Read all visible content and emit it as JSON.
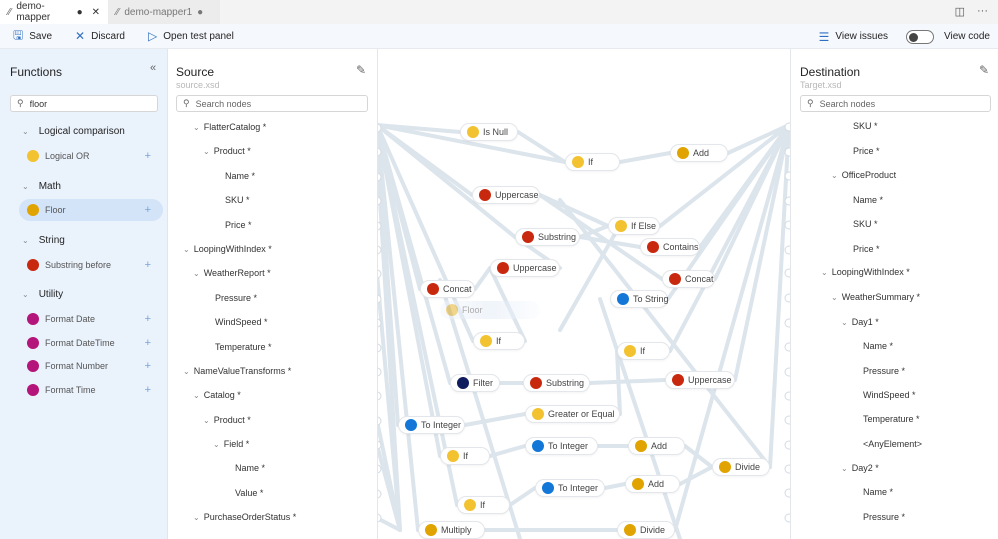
{
  "tabs": [
    {
      "label": "demo-mapper",
      "dirty": true,
      "active": true
    },
    {
      "label": "demo-mapper1",
      "dirty": true,
      "active": false
    }
  ],
  "toolbar": {
    "save": "Save",
    "discard": "Discard",
    "open_test_panel": "Open test panel",
    "view_issues": "View issues",
    "view_code": "View code",
    "view_code_on": false
  },
  "functions": {
    "title": "Functions",
    "search_value": "floor",
    "categories": [
      {
        "name": "Logical comparison",
        "items": [
          {
            "label": "Logical OR",
            "color": "#f2c230"
          }
        ]
      },
      {
        "name": "Math",
        "items": [
          {
            "label": "Floor",
            "color": "#e0a300",
            "selected": true
          }
        ]
      },
      {
        "name": "String",
        "items": [
          {
            "label": "Substring before",
            "color": "#c8290e"
          }
        ]
      },
      {
        "name": "Utility",
        "items": [
          {
            "label": "Format Date",
            "color": "#b4157a"
          },
          {
            "label": "Format DateTime",
            "color": "#b4157a"
          },
          {
            "label": "Format Number",
            "color": "#b4157a"
          },
          {
            "label": "Format Time",
            "color": "#b4157a"
          }
        ]
      }
    ]
  },
  "source": {
    "title": "Source",
    "file": "source.xsd",
    "search_placeholder": "Search nodes",
    "rows": [
      {
        "label": "FlatterCatalog *",
        "indent": 1,
        "chev": true
      },
      {
        "label": "Product *",
        "indent": 2,
        "chev": true
      },
      {
        "label": "Name *",
        "indent": 3
      },
      {
        "label": "SKU *",
        "indent": 3
      },
      {
        "label": "Price *",
        "indent": 3
      },
      {
        "label": "LoopingWithIndex *",
        "indent": 0,
        "chev": true
      },
      {
        "label": "WeatherReport *",
        "indent": 1,
        "chev": true
      },
      {
        "label": "Pressure *",
        "indent": 2
      },
      {
        "label": "WindSpeed *",
        "indent": 2
      },
      {
        "label": "Temperature *",
        "indent": 2
      },
      {
        "label": "NameValueTransforms *",
        "indent": 0,
        "chev": true
      },
      {
        "label": "Catalog *",
        "indent": 1,
        "chev": true
      },
      {
        "label": "Product *",
        "indent": 2,
        "chev": true
      },
      {
        "label": "Field *",
        "indent": 3,
        "chev": true
      },
      {
        "label": "Name *",
        "indent": 4
      },
      {
        "label": "Value *",
        "indent": 4
      },
      {
        "label": "PurchaseOrderStatus *",
        "indent": 1,
        "chev": true
      }
    ]
  },
  "destination": {
    "title": "Destination",
    "file": "Target.xsd",
    "search_placeholder": "Search nodes",
    "rows": [
      {
        "label": "SKU *",
        "indent": 3
      },
      {
        "label": "Price *",
        "indent": 3
      },
      {
        "label": "OfficeProduct",
        "indent": 2,
        "chev": true
      },
      {
        "label": "Name *",
        "indent": 3
      },
      {
        "label": "SKU *",
        "indent": 3
      },
      {
        "label": "Price *",
        "indent": 3
      },
      {
        "label": "LoopingWithIndex *",
        "indent": 1,
        "chev": true
      },
      {
        "label": "WeatherSummary *",
        "indent": 2,
        "chev": true
      },
      {
        "label": "Day1 *",
        "indent": 3,
        "chev": true
      },
      {
        "label": "Name *",
        "indent": 4
      },
      {
        "label": "Pressure *",
        "indent": 4
      },
      {
        "label": "WindSpeed *",
        "indent": 4
      },
      {
        "label": "Temperature *",
        "indent": 4
      },
      {
        "label": "<AnyElement>",
        "indent": 4
      },
      {
        "label": "Day2 *",
        "indent": 3,
        "chev": true
      },
      {
        "label": "Name *",
        "indent": 4
      },
      {
        "label": "Pressure *",
        "indent": 4
      }
    ]
  },
  "canvas": {
    "nodes": [
      {
        "label": "Is Null",
        "color": "#f2c230"
      },
      {
        "label": "If",
        "color": "#f2c230"
      },
      {
        "label": "Add",
        "color": "#e0a300"
      },
      {
        "label": "Uppercase",
        "color": "#c8290e"
      },
      {
        "label": "If Else",
        "color": "#f2c230"
      },
      {
        "label": "Substring",
        "color": "#c8290e"
      },
      {
        "label": "Contains",
        "color": "#c8290e"
      },
      {
        "label": "Uppercase",
        "color": "#c8290e"
      },
      {
        "label": "Concat",
        "color": "#c8290e"
      },
      {
        "label": "Concat",
        "color": "#c8290e"
      },
      {
        "label": "To String",
        "color": "#1277d6"
      },
      {
        "label": "Floor",
        "color": "#e0a300",
        "ghost": true
      },
      {
        "label": "If",
        "color": "#f2c230"
      },
      {
        "label": "If",
        "color": "#f2c230"
      },
      {
        "label": "Filter",
        "color": "#0f1d5e"
      },
      {
        "label": "Substring",
        "color": "#c8290e"
      },
      {
        "label": "Uppercase",
        "color": "#c8290e"
      },
      {
        "label": "Greater or Equal",
        "color": "#f2c230"
      },
      {
        "label": "To Integer",
        "color": "#1277d6"
      },
      {
        "label": "If",
        "color": "#f2c230"
      },
      {
        "label": "To Integer",
        "color": "#1277d6"
      },
      {
        "label": "Add",
        "color": "#e0a300"
      },
      {
        "label": "Divide",
        "color": "#e0a300"
      },
      {
        "label": "If",
        "color": "#f2c230"
      },
      {
        "label": "To Integer",
        "color": "#1277d6"
      },
      {
        "label": "Add",
        "color": "#e0a300"
      },
      {
        "label": "Multiply",
        "color": "#e0a300"
      },
      {
        "label": "Divide",
        "color": "#e0a300"
      }
    ]
  }
}
